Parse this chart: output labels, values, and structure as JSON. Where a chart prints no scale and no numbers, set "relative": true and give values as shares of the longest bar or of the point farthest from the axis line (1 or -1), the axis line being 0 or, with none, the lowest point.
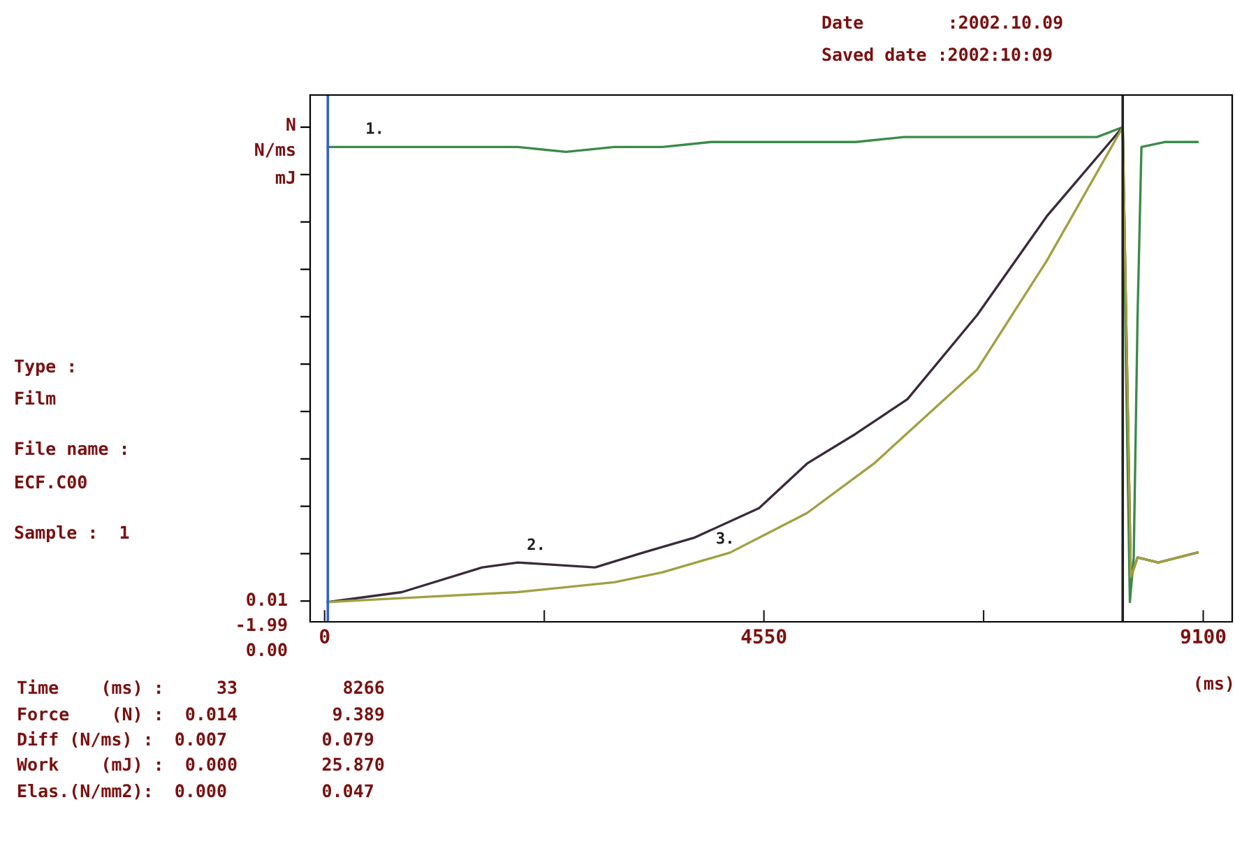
{
  "chart_data": {
    "type": "line",
    "relative": true,
    "xlabel": "(ms)",
    "xlim": [
      -150,
      9400
    ],
    "xticks": [
      0,
      {
        "value": 2275,
        "label": null
      },
      4550,
      {
        "value": 6825,
        "label": null
      },
      9100
    ],
    "grid": false,
    "legend": false,
    "marker": "none",
    "line_style": "solid",
    "series": [
      {
        "name": "1.",
        "color": "#3a8a4a",
        "x": [
          33,
          500,
          1000,
          1500,
          2000,
          2500,
          3000,
          3500,
          4000,
          4500,
          5000,
          5500,
          6000,
          6500,
          7000,
          7500,
          8000,
          8266,
          8300,
          8340,
          8380,
          8420,
          8460,
          8700,
          9040
        ],
        "values": [
          0.96,
          0.96,
          0.96,
          0.96,
          0.96,
          0.95,
          0.96,
          0.96,
          0.97,
          0.97,
          0.97,
          0.97,
          0.98,
          0.98,
          0.98,
          0.98,
          0.98,
          1.0,
          0.52,
          0.04,
          0.13,
          0.62,
          0.96,
          0.97,
          0.97
        ]
      },
      {
        "name": "2.",
        "color": "#3a2a3a",
        "x": [
          33,
          800,
          1632,
          2000,
          2801,
          3300,
          3827,
          4500,
          4997,
          5500,
          6036,
          6758,
          7480,
          8266,
          8350,
          8419,
          8635,
          9040
        ],
        "values": [
          0.04,
          0.06,
          0.11,
          0.12,
          0.11,
          0.14,
          0.17,
          0.23,
          0.32,
          0.38,
          0.45,
          0.62,
          0.82,
          1.0,
          0.09,
          0.13,
          0.12,
          0.14
        ]
      },
      {
        "name": "3.",
        "color": "#a0a040",
        "x": [
          33,
          1000,
          2000,
          3000,
          3500,
          4200,
          4997,
          5690,
          6758,
          7480,
          8266,
          8350,
          8419,
          8635,
          9040
        ],
        "values": [
          0.04,
          0.05,
          0.06,
          0.08,
          0.1,
          0.14,
          0.22,
          0.32,
          0.51,
          0.73,
          1.0,
          0.09,
          0.13,
          0.12,
          0.14
        ]
      }
    ],
    "ref_lines": [
      {
        "axis": "x",
        "value": 33,
        "color": "#3060d0"
      },
      {
        "axis": "x",
        "value": 8266,
        "color": "#202020"
      }
    ],
    "annotations": [
      "Date        :2002.10.09",
      "Saved date :2002:10:09",
      "N",
      "N/ms",
      "mJ",
      "0.01",
      "-1.99",
      "0.00",
      "Type :",
      "Film",
      "File name :",
      "ECF.C00",
      "Sample :  1",
      "Time    (ms) :     33          8266",
      "Force    (N) :  0.014         9.389",
      "Diff (N/ms) :  0.007         0.079",
      "Work    (mJ) :  0.000        25.870",
      "Elas.(N/mm2):  0.000         0.047"
    ]
  }
}
